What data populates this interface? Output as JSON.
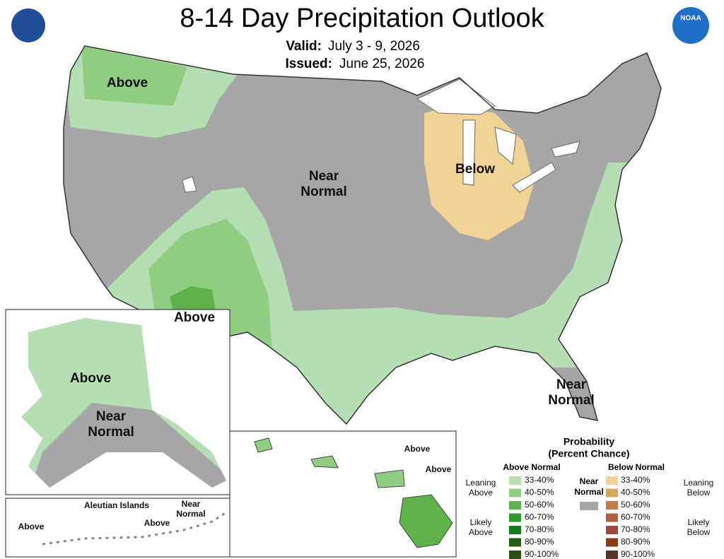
{
  "header": {
    "title": "8-14 Day Precipitation Outlook",
    "valid_label": "Valid:",
    "valid": "July 3 - 9, 2026",
    "issued_label": "Issued:",
    "issued": "June 25, 2026",
    "noaa_logo_text": "NOAA"
  },
  "map_labels": [
    {
      "lines": [
        "Above"
      ]
    },
    {
      "lines": [
        "Near",
        "Normal"
      ]
    },
    {
      "lines": [
        "Below"
      ]
    },
    {
      "lines": [
        "Above"
      ]
    },
    {
      "lines": [
        "Near",
        "Normal"
      ]
    }
  ],
  "alaska_labels": [
    {
      "lines": [
        "Above"
      ]
    },
    {
      "lines": [
        "Near",
        "Normal"
      ]
    }
  ],
  "aleutian": {
    "title": "Aleutian Islands",
    "labels": [
      {
        "lines": [
          "Above"
        ]
      },
      {
        "lines": [
          "Above"
        ]
      },
      {
        "lines": [
          "Near",
          "Normal"
        ]
      }
    ]
  },
  "hawaii_labels": [
    {
      "lines": [
        "Above"
      ]
    },
    {
      "lines": [
        "Above"
      ]
    }
  ],
  "legend": {
    "title": [
      "Probability",
      "(Percent Chance)"
    ],
    "above": {
      "heading": "Above Normal",
      "colors": [
        "#b5dfb2",
        "#8fcd80",
        "#5db34a",
        "#2e9a2d",
        "#137a1c",
        "#1f5d14",
        "#294d12"
      ],
      "ranges": [
        "33-40%",
        "40-50%",
        "50-60%",
        "60-70%",
        "70-80%",
        "80-90%",
        "90-100%"
      ],
      "groups": [
        [
          "Leaning",
          "Above"
        ],
        [
          "Likely",
          "Above"
        ]
      ]
    },
    "near": {
      "heading": [
        "Near",
        "Normal"
      ],
      "color": "#a6a6a6"
    },
    "below": {
      "heading": "Below Normal",
      "colors": [
        "#f0d395",
        "#d9a653",
        "#c57b42",
        "#b06040",
        "#9c4a3e",
        "#8a3d18",
        "#5b3226"
      ],
      "ranges": [
        "33-40%",
        "40-50%",
        "50-60%",
        "60-70%",
        "70-80%",
        "80-90%",
        "90-100%"
      ],
      "groups": [
        [
          "Leaning",
          "Below"
        ],
        [
          "Likely",
          "Below"
        ]
      ]
    }
  }
}
